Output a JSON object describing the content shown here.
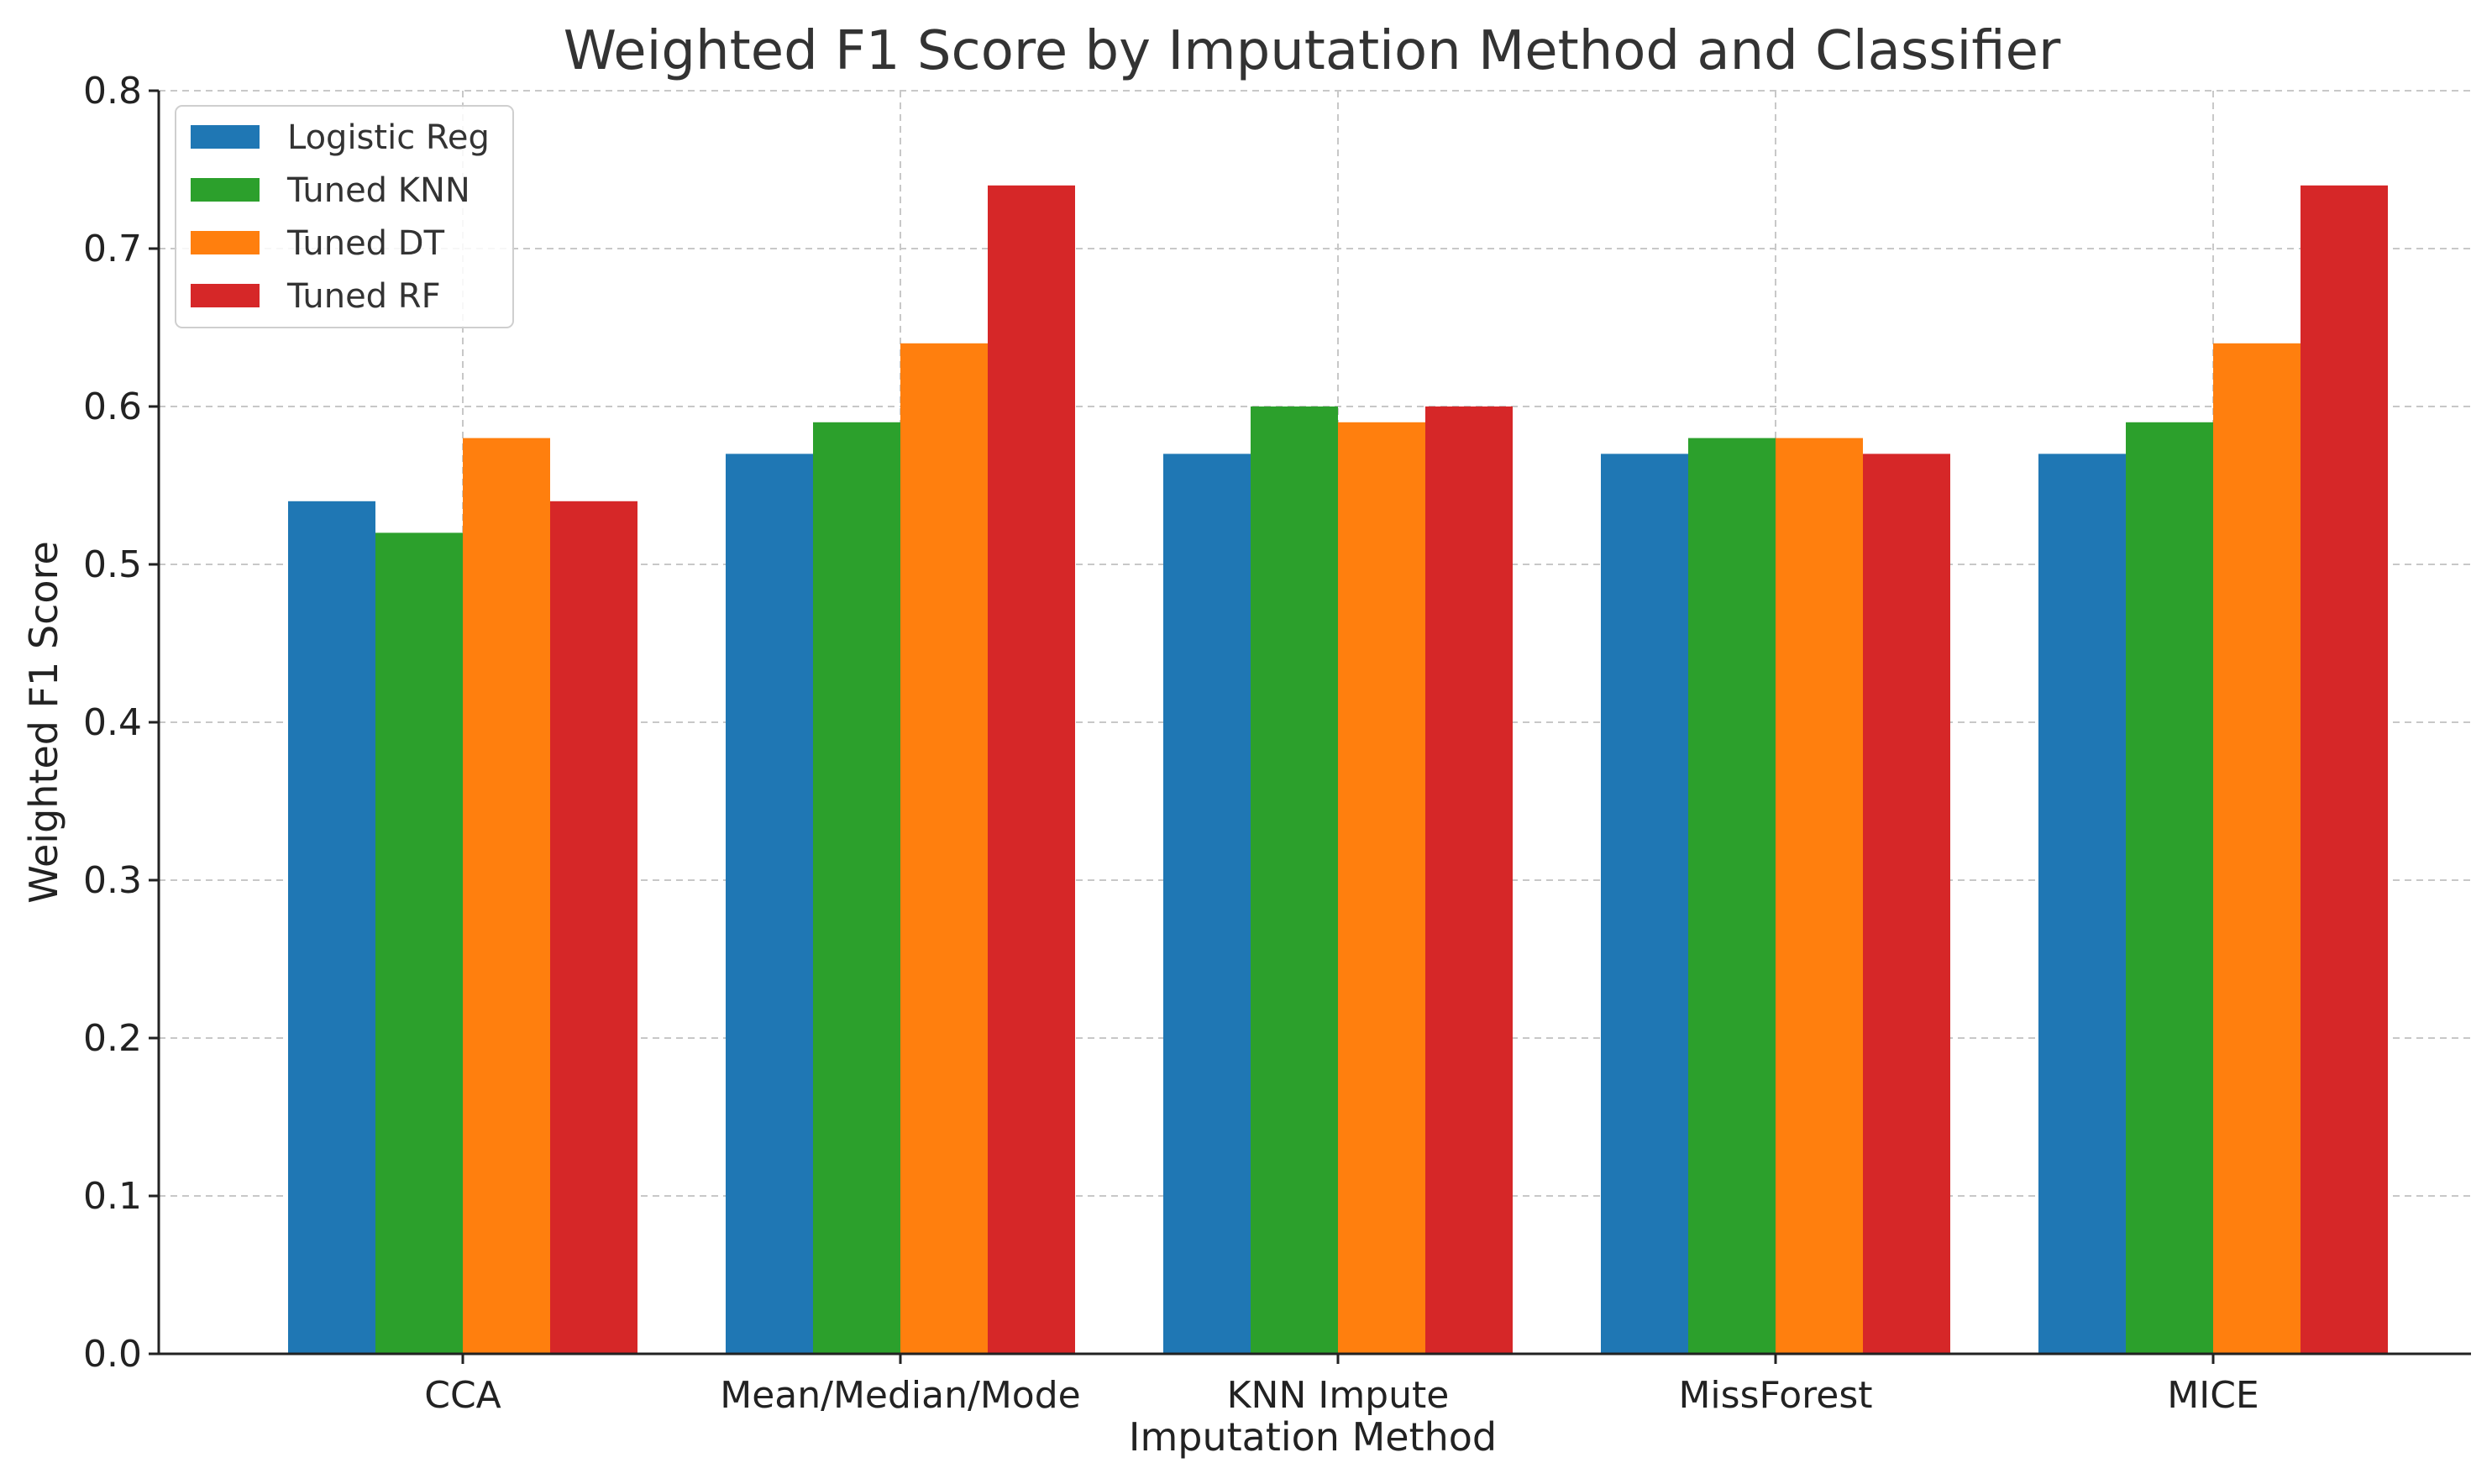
{
  "chart_data": {
    "type": "bar",
    "title": "Weighted F1 Score by Imputation Method and Classifier",
    "xlabel": "Imputation Method",
    "ylabel": "Weighted F1 Score",
    "categories": [
      "CCA",
      "Mean/Median/Mode",
      "KNN Impute",
      "MissForest",
      "MICE"
    ],
    "ylim": [
      0,
      0.8
    ],
    "yticks": [
      0.0,
      0.1,
      0.2,
      0.3,
      0.4,
      0.5,
      0.6,
      0.7,
      0.8
    ],
    "ytick_labels": [
      "0.0",
      "0.1",
      "0.2",
      "0.3",
      "0.4",
      "0.5",
      "0.6",
      "0.7",
      "0.8"
    ],
    "grid": true,
    "legend_position": "top-left",
    "series": [
      {
        "name": "Logistic Reg",
        "color": "#1f77b4",
        "values": [
          0.54,
          0.57,
          0.57,
          0.57,
          0.57
        ]
      },
      {
        "name": "Tuned KNN",
        "color": "#2ca02c",
        "values": [
          0.52,
          0.59,
          0.6,
          0.58,
          0.59
        ]
      },
      {
        "name": "Tuned DT",
        "color": "#ff7f0e",
        "values": [
          0.58,
          0.64,
          0.59,
          0.58,
          0.64
        ]
      },
      {
        "name": "Tuned RF",
        "color": "#d62728",
        "values": [
          0.54,
          0.74,
          0.6,
          0.57,
          0.74
        ]
      }
    ]
  }
}
